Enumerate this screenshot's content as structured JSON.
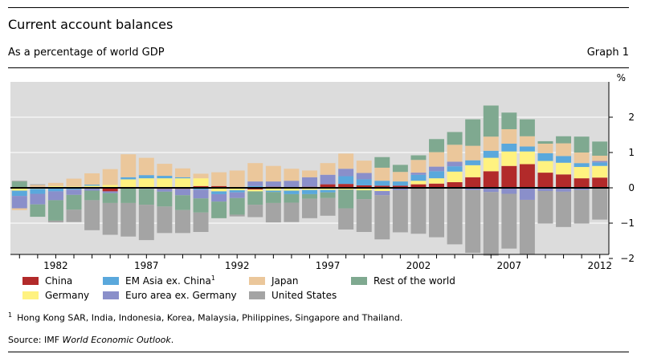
{
  "header": {
    "title": "Current account balances",
    "subtitle": "As a percentage of world GDP",
    "graph_label": "Graph 1"
  },
  "footnote": {
    "marker": "1",
    "text": "Hong Kong SAR, India, Indonesia, Korea, Malaysia, Philippines, Singapore and Thailand."
  },
  "source": {
    "prefix": "Source: IMF ",
    "publication": "World Economic Outlook",
    "suffix": "."
  },
  "colors": {
    "plot_background": "#dcdcdc",
    "zero_line": "#000000",
    "gridline": "#ffffff"
  },
  "chart_data": {
    "type": "bar",
    "stacked": true,
    "title": "Current account balances",
    "subtitle": "As a percentage of world GDP",
    "ylabel": "%",
    "ylim": [
      -2,
      3
    ],
    "yticks": [
      -2,
      -1,
      0,
      1,
      2
    ],
    "ytick_labels": [
      "−2",
      "−1",
      "0",
      "1",
      "2"
    ],
    "grid": true,
    "legend_position": "bottom",
    "x": [
      1980,
      1981,
      1982,
      1983,
      1984,
      1985,
      1986,
      1987,
      1988,
      1989,
      1990,
      1991,
      1992,
      1993,
      1994,
      1995,
      1996,
      1997,
      1998,
      1999,
      2000,
      2001,
      2002,
      2003,
      2004,
      2005,
      2006,
      2007,
      2008,
      2009,
      2010,
      2011,
      2012
    ],
    "xtick_labels": [
      "1982",
      "1987",
      "1992",
      "1997",
      "2002",
      "2007",
      "2012"
    ],
    "xtick_years": [
      1982,
      1987,
      1992,
      1997,
      2002,
      2007,
      2012
    ],
    "series": [
      {
        "name": "China",
        "color": "#b22a2a",
        "values": [
          0,
          0,
          0.02,
          0.02,
          0.01,
          -0.1,
          0,
          0.02,
          -0.03,
          -0.03,
          0.05,
          0.05,
          0.02,
          -0.05,
          0.03,
          0.01,
          0.03,
          0.1,
          0.11,
          0.07,
          0.06,
          0.06,
          0.1,
          0.12,
          0.16,
          0.3,
          0.47,
          0.62,
          0.67,
          0.43,
          0.38,
          0.27,
          0.29
        ]
      },
      {
        "name": "Germany",
        "color": "#fff280",
        "values": [
          -0.08,
          -0.03,
          0.03,
          0.02,
          0.05,
          0.08,
          0.24,
          0.25,
          0.27,
          0.27,
          0.22,
          -0.1,
          -0.07,
          -0.05,
          -0.08,
          -0.08,
          -0.06,
          -0.06,
          -0.05,
          -0.07,
          -0.09,
          0,
          0.1,
          0.15,
          0.3,
          0.34,
          0.38,
          0.41,
          0.36,
          0.33,
          0.33,
          0.32,
          0.33
        ]
      },
      {
        "name": "EM Asia ex. China",
        "superscript": "1",
        "color": "#5aa8dc",
        "values": [
          -0.15,
          -0.14,
          -0.1,
          -0.05,
          0.03,
          0,
          0.06,
          0.09,
          0.07,
          0.03,
          -0.05,
          -0.08,
          -0.06,
          0.05,
          -0.04,
          -0.1,
          -0.12,
          -0.07,
          0.22,
          0.17,
          0.14,
          0.12,
          0.17,
          0.2,
          0.15,
          0.14,
          0.2,
          0.22,
          0.14,
          0.22,
          0.19,
          0.11,
          0.1
        ]
      },
      {
        "name": "Euro area ex. Germany",
        "color": "#8a8fca",
        "values": [
          -0.35,
          -0.3,
          -0.25,
          -0.15,
          -0.08,
          -0.05,
          0,
          -0.03,
          -0.08,
          -0.18,
          -0.25,
          -0.21,
          -0.16,
          0.13,
          0.15,
          0.19,
          0.27,
          0.27,
          0.21,
          0.18,
          -0.12,
          -0.06,
          0.06,
          0.13,
          0.13,
          -0.06,
          -0.12,
          -0.17,
          -0.34,
          -0.09,
          -0.11,
          -0.06,
          0.04
        ]
      },
      {
        "name": "Japan",
        "color": "#ebc79b",
        "values": [
          -0.05,
          0.08,
          0.09,
          0.22,
          0.32,
          0.45,
          0.65,
          0.49,
          0.34,
          0.25,
          0.13,
          0.39,
          0.47,
          0.52,
          0.44,
          0.34,
          0.19,
          0.33,
          0.43,
          0.35,
          0.37,
          0.27,
          0.36,
          0.41,
          0.48,
          0.41,
          0.4,
          0.41,
          0.29,
          0.27,
          0.36,
          0.3,
          0.15
        ]
      },
      {
        "name": "Rest of the world",
        "color": "#7fa990",
        "values": [
          0.18,
          -0.35,
          -0.58,
          -0.42,
          -0.27,
          -0.28,
          -0.43,
          -0.45,
          -0.42,
          -0.42,
          -0.4,
          -0.47,
          -0.47,
          -0.38,
          -0.31,
          -0.24,
          -0.13,
          -0.16,
          -0.53,
          -0.25,
          0.3,
          0.2,
          0.13,
          0.37,
          0.36,
          0.75,
          0.88,
          0.47,
          0.48,
          0.07,
          0.2,
          0.45,
          0.4
        ]
      },
      {
        "name": "United States",
        "color": "#a4a4a4",
        "values": [
          0.02,
          0.02,
          -0.05,
          -0.35,
          -0.85,
          -0.9,
          -0.95,
          -1.0,
          -0.75,
          -0.65,
          -0.55,
          0,
          -0.05,
          -0.35,
          -0.55,
          -0.55,
          -0.55,
          -0.5,
          -0.6,
          -0.93,
          -1.25,
          -1.2,
          -1.3,
          -1.4,
          -1.6,
          -1.78,
          -1.8,
          -1.55,
          -1.55,
          -0.92,
          -1.0,
          -0.95,
          -0.9
        ]
      }
    ],
    "legend_order": [
      "China",
      "EM Asia ex. China",
      "Japan",
      "Rest of the world",
      "Germany",
      "Euro area ex. Germany",
      "United States"
    ]
  }
}
